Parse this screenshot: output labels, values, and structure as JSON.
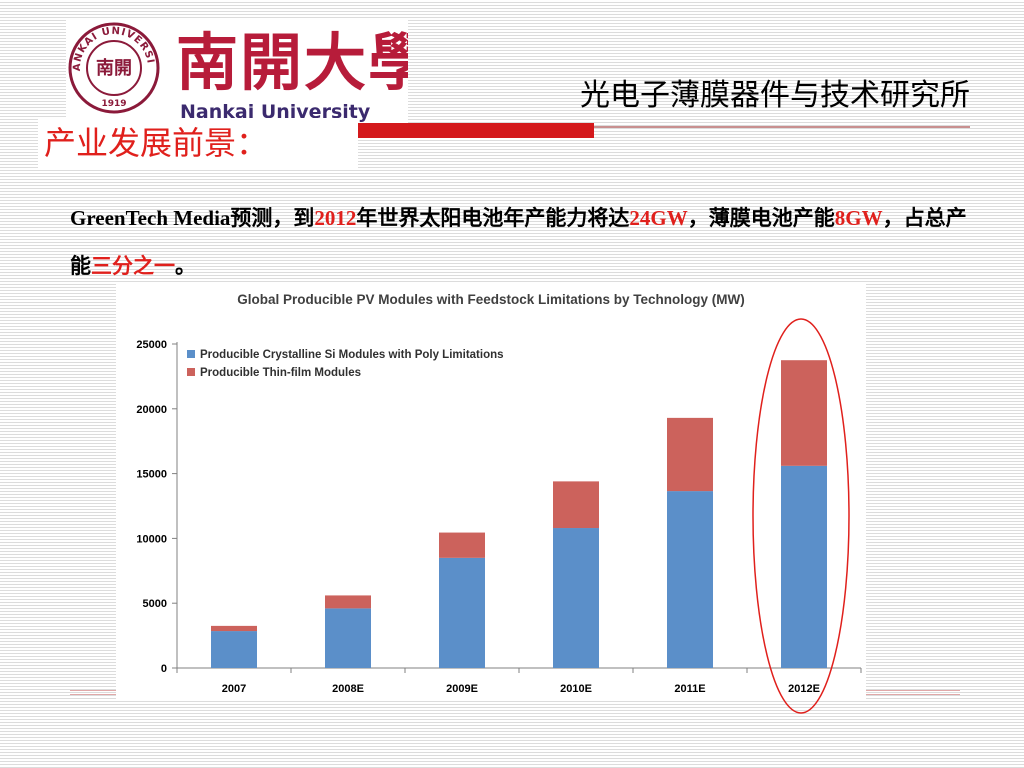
{
  "header": {
    "logo": {
      "cn_name": "南開大學",
      "en_name": "Nankai University",
      "seal_text": "NANKAI UNIVERSITY",
      "seal_center": "南開",
      "seal_year": "1919"
    },
    "institute": "光电子薄膜器件与技术研究所"
  },
  "section_title": "产业发展前景：",
  "body": {
    "t1": "GreenTech Media预测，到",
    "h1": "2012",
    "t2": "年世界太阳电池年产能力将达",
    "h2": "24GW",
    "t3": "，薄膜电池产能",
    "h3": "8GW",
    "t4": "，占总产能",
    "h4": "三分之一",
    "t5": "。"
  },
  "colors": {
    "accent_red": "#e0201c",
    "crystalline": "#5b8fc9",
    "thin_film": "#cc625c",
    "highlight_ellipse": "#e0201c"
  },
  "chart_data": {
    "type": "bar",
    "stacked": true,
    "title": "Global Producible PV Modules with Feedstock Limitations by Technology (MW)",
    "categories": [
      "2007",
      "2008E",
      "2009E",
      "2010E",
      "2011E",
      "2012E"
    ],
    "series": [
      {
        "name": "Producible Crystalline Si Modules with Poly Limitations",
        "values": [
          2850,
          4600,
          8500,
          10800,
          13650,
          15600
        ]
      },
      {
        "name": "Producible Thin-film Modules",
        "values": [
          400,
          1000,
          1950,
          3600,
          5650,
          8150
        ]
      }
    ],
    "y_ticks": [
      "0",
      "5000",
      "10000",
      "15000",
      "20000",
      "25000"
    ],
    "ylim": [
      0,
      25000
    ],
    "legend_position": "top-left",
    "grid": false,
    "highlight": "2012E"
  }
}
